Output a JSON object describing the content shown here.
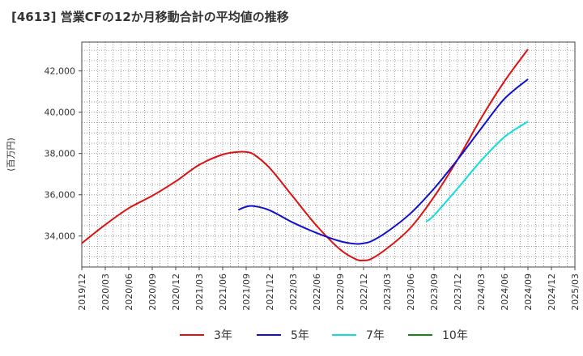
{
  "chart_data": {
    "type": "line",
    "title": "[4613]  営業CFの12か月移動合計の平均値の推移",
    "ylabel": "(百万円)",
    "xlabel": "",
    "ylim": [
      32500,
      43400
    ],
    "yticks": [
      34000,
      36000,
      38000,
      40000,
      42000
    ],
    "ytick_labels": [
      "34,000",
      "36,000",
      "38,000",
      "40,000",
      "42,000"
    ],
    "xticks": [
      "2019/12",
      "2020/03",
      "2020/06",
      "2020/09",
      "2020/12",
      "2021/03",
      "2021/06",
      "2021/09",
      "2021/12",
      "2022/03",
      "2022/06",
      "2022/09",
      "2022/12",
      "2023/03",
      "2023/06",
      "2023/09",
      "2023/12",
      "2024/03",
      "2024/06",
      "2024/09",
      "2024/12",
      "2025/03"
    ],
    "grid": true,
    "legend_position": "bottom",
    "series": [
      {
        "name": "3年",
        "color": "#dd1111",
        "x": [
          "2019/12",
          "2020/03",
          "2020/06",
          "2020/09",
          "2020/12",
          "2021/03",
          "2021/06",
          "2021/08",
          "2021/09",
          "2021/10",
          "2021/12",
          "2022/03",
          "2022/06",
          "2022/09",
          "2022/11",
          "2022/12",
          "2023/01",
          "2023/03",
          "2023/06",
          "2023/09",
          "2023/12",
          "2024/03",
          "2024/06",
          "2024/09"
        ],
        "values": [
          33650,
          34550,
          35350,
          35950,
          36650,
          37450,
          37950,
          38080,
          38070,
          37950,
          37300,
          35900,
          34500,
          33350,
          32880,
          32820,
          32900,
          33400,
          34400,
          35900,
          37700,
          39700,
          41500,
          43050
        ]
      },
      {
        "name": "5年",
        "color": "#1111cc",
        "x": [
          "2021/08",
          "2021/09",
          "2021/10",
          "2021/12",
          "2022/03",
          "2022/06",
          "2022/09",
          "2022/11",
          "2022/12",
          "2023/01",
          "2023/03",
          "2023/06",
          "2023/09",
          "2023/12",
          "2024/03",
          "2024/06",
          "2024/09"
        ],
        "values": [
          35270,
          35420,
          35450,
          35250,
          34650,
          34150,
          33750,
          33620,
          33650,
          33750,
          34200,
          35100,
          36300,
          37700,
          39200,
          40650,
          41600
        ]
      },
      {
        "name": "7年",
        "color": "#11dddd",
        "x": [
          "2023/08",
          "2023/09",
          "2023/12",
          "2024/03",
          "2024/06",
          "2024/09"
        ],
        "values": [
          34700,
          35000,
          36300,
          37650,
          38800,
          39550
        ]
      },
      {
        "name": "10年",
        "color": "#118811",
        "x": [],
        "values": []
      }
    ]
  }
}
